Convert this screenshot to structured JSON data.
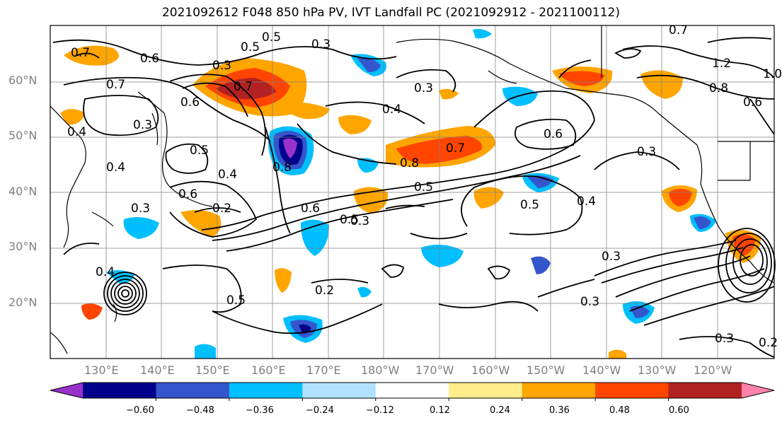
{
  "title": "2021092612 F048 850 hPa PV, IVT Landfall PC (2021092912 - 2021100112)",
  "latitude_labels": [
    "60°N",
    "50°N",
    "40°N",
    "30°N",
    "20°N"
  ],
  "longitude_labels": [
    "130°E",
    "140°E",
    "150°E",
    "160°E",
    "170°E",
    "180°W",
    "170°W",
    "160°W",
    "150°W",
    "140°W",
    "130°W",
    "120°W"
  ],
  "contour_labels": [
    "0.7",
    "0.6",
    "0.5",
    "0.3",
    "0.5",
    "0.7",
    "0.3",
    "0.6",
    "0.4",
    "0.5",
    "0.4",
    "0.6",
    "0.3",
    "0.4",
    "0.3",
    "0.8",
    "0.7",
    "0.5",
    "0.5",
    "0.3",
    "0.8",
    "0.6",
    "0.4",
    "0.7",
    "0.6",
    "0.5",
    "0.3",
    "0.4",
    "0.2",
    "0.5",
    "0.3",
    "0.3",
    "0.3",
    "0.2",
    "0.7",
    "1.0",
    "1.2",
    "0.8",
    "0.6",
    "0.3",
    "0.4",
    "0.2"
  ],
  "colorbar": {
    "colors": [
      "#9932cc",
      "#00008b",
      "#3456cc",
      "#00bfff",
      "#b0e2ff",
      "#ffffff",
      "#ffec8b",
      "#ffa500",
      "#ff4500",
      "#b22222",
      "#ff82ab"
    ],
    "tick_labels": [
      "−0.60",
      "−0.48",
      "−0.36",
      "−0.24",
      "−0.12",
      "0.12",
      "0.24",
      "0.36",
      "0.48",
      "0.60"
    ]
  }
}
